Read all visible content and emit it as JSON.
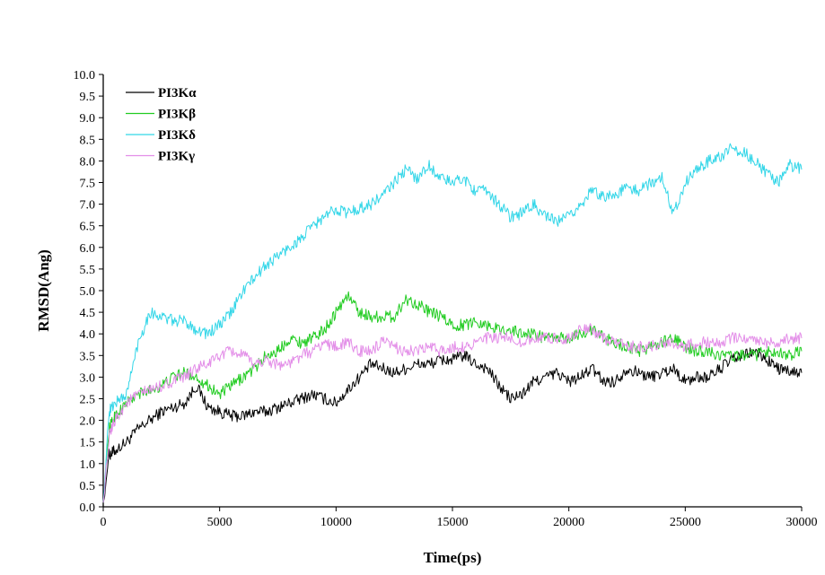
{
  "chart_data": {
    "type": "line",
    "title": "",
    "xlabel": "Time(ps)",
    "ylabel": "RMSD(Ang)",
    "xlim": [
      0,
      30000
    ],
    "ylim": [
      0.0,
      10.0
    ],
    "xticks": [
      "0",
      "5000",
      "10000",
      "15000",
      "20000",
      "25000",
      "30000"
    ],
    "yticks": [
      "0.0",
      "0.5",
      "1.0",
      "1.5",
      "2.0",
      "2.5",
      "3.0",
      "3.5",
      "4.0",
      "4.5",
      "5.0",
      "5.5",
      "6.0",
      "6.5",
      "7.0",
      "7.5",
      "8.0",
      "8.5",
      "9.0",
      "9.5",
      "10.0"
    ],
    "grid": false,
    "legend_position": "top-left",
    "x": [
      0,
      250,
      500,
      1000,
      1500,
      2000,
      2500,
      3000,
      3500,
      4000,
      4500,
      5000,
      5500,
      6000,
      6500,
      7000,
      7500,
      8000,
      8500,
      9000,
      9500,
      10000,
      10500,
      11000,
      11500,
      12000,
      12500,
      13000,
      13500,
      14000,
      14500,
      15000,
      15500,
      16000,
      16500,
      17000,
      17500,
      18000,
      18500,
      19000,
      19500,
      20000,
      20500,
      21000,
      21500,
      22000,
      22500,
      23000,
      23500,
      24000,
      24500,
      25000,
      25500,
      26000,
      26500,
      27000,
      27500,
      28000,
      28500,
      29000,
      29500,
      30000
    ],
    "series": [
      {
        "name": "PI3Kα",
        "color": "#000000",
        "values": [
          0.1,
          1.2,
          1.3,
          1.5,
          1.8,
          2.0,
          2.2,
          2.3,
          2.4,
          2.8,
          2.3,
          2.2,
          2.1,
          2.1,
          2.2,
          2.2,
          2.3,
          2.4,
          2.5,
          2.6,
          2.5,
          2.4,
          2.7,
          3.0,
          3.3,
          3.2,
          3.1,
          3.2,
          3.3,
          3.3,
          3.4,
          3.4,
          3.5,
          3.3,
          3.2,
          2.8,
          2.5,
          2.6,
          2.9,
          3.0,
          3.1,
          2.9,
          3.0,
          3.2,
          2.9,
          2.9,
          3.2,
          3.1,
          3.0,
          3.1,
          3.2,
          2.9,
          3.0,
          3.0,
          3.2,
          3.4,
          3.5,
          3.6,
          3.4,
          3.2,
          3.1,
          3.1
        ]
      },
      {
        "name": "PI3Kβ",
        "color": "#22cc22",
        "values": [
          0.1,
          1.8,
          2.1,
          2.4,
          2.6,
          2.7,
          2.8,
          3.0,
          3.1,
          3.0,
          2.8,
          2.6,
          2.8,
          3.0,
          3.2,
          3.5,
          3.6,
          3.9,
          3.8,
          3.9,
          4.1,
          4.5,
          4.9,
          4.5,
          4.4,
          4.4,
          4.4,
          4.8,
          4.7,
          4.5,
          4.4,
          4.2,
          4.2,
          4.3,
          4.2,
          4.1,
          4.1,
          4.0,
          4.0,
          3.9,
          3.9,
          3.9,
          4.0,
          4.1,
          3.9,
          3.8,
          3.7,
          3.6,
          3.7,
          3.8,
          3.9,
          3.7,
          3.6,
          3.6,
          3.5,
          3.5,
          3.5,
          3.5,
          3.6,
          3.6,
          3.5,
          3.6
        ]
      },
      {
        "name": "PI3Kδ",
        "color": "#33d6e8",
        "values": [
          0.1,
          2.2,
          2.4,
          2.6,
          3.8,
          4.5,
          4.4,
          4.3,
          4.3,
          4.1,
          4.0,
          4.2,
          4.5,
          5.0,
          5.3,
          5.6,
          5.8,
          6.0,
          6.2,
          6.5,
          6.7,
          6.9,
          6.8,
          6.9,
          7.0,
          7.2,
          7.5,
          7.8,
          7.6,
          7.9,
          7.6,
          7.5,
          7.6,
          7.3,
          7.3,
          7.0,
          6.7,
          6.8,
          7.0,
          6.7,
          6.6,
          6.7,
          7.0,
          7.3,
          7.2,
          7.2,
          7.4,
          7.3,
          7.5,
          7.6,
          6.8,
          7.5,
          7.8,
          8.0,
          8.1,
          8.3,
          8.2,
          8.0,
          7.7,
          7.5,
          7.9,
          7.8
        ]
      },
      {
        "name": "PI3Kγ",
        "color": "#e38ee8",
        "values": [
          0.1,
          1.6,
          2.0,
          2.4,
          2.6,
          2.7,
          2.8,
          2.9,
          3.0,
          3.2,
          3.3,
          3.5,
          3.6,
          3.5,
          3.3,
          3.4,
          3.3,
          3.3,
          3.5,
          3.6,
          3.8,
          3.7,
          3.8,
          3.6,
          3.6,
          3.8,
          3.7,
          3.6,
          3.6,
          3.7,
          3.6,
          3.7,
          3.7,
          3.8,
          3.9,
          3.9,
          3.9,
          3.8,
          3.9,
          3.9,
          3.9,
          3.9,
          4.1,
          4.1,
          3.9,
          3.8,
          3.7,
          3.7,
          3.7,
          3.8,
          3.8,
          3.7,
          3.8,
          3.8,
          3.8,
          3.9,
          3.9,
          3.9,
          3.8,
          3.8,
          3.9,
          3.9
        ]
      }
    ]
  }
}
